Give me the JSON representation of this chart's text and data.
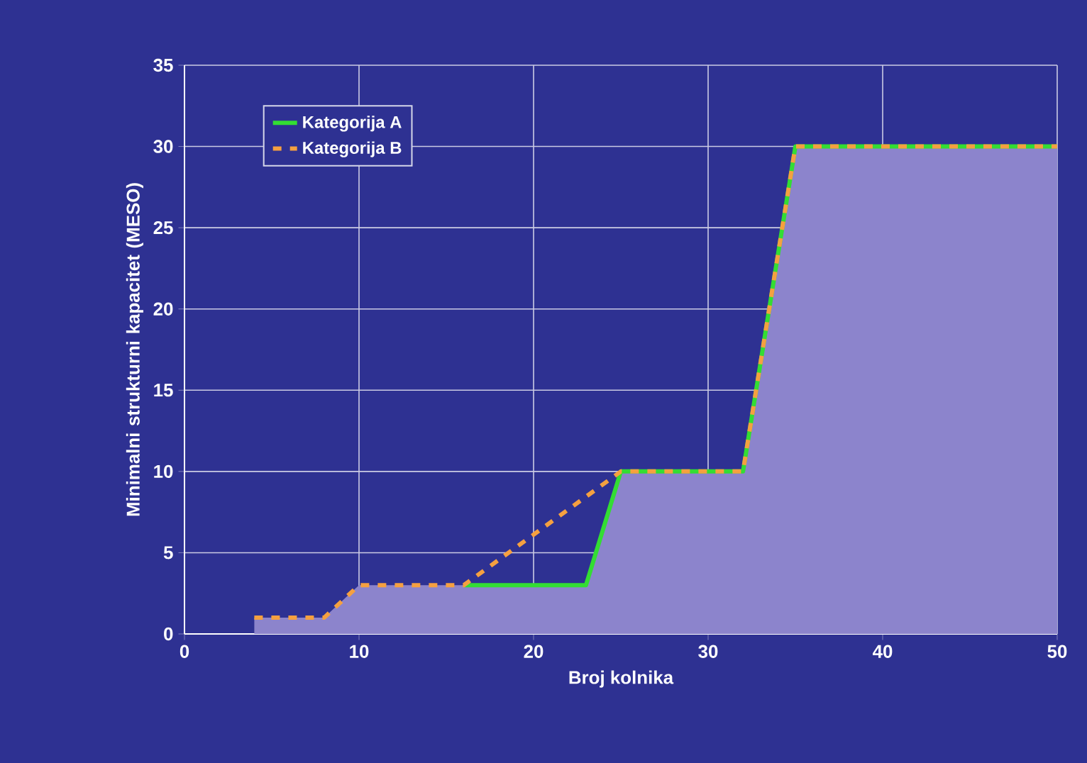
{
  "chart_data": {
    "type": "line",
    "xlabel": "Broj kolnika",
    "ylabel": "Minimalni strukturni kapacitet (MESO)",
    "xlim": [
      0,
      50
    ],
    "xticks": [
      0,
      10,
      20,
      30,
      40,
      50
    ],
    "ylim": [
      0,
      35
    ],
    "yticks": [
      0,
      5,
      10,
      15,
      20,
      25,
      30,
      35
    ],
    "grid": true,
    "legend": "top left",
    "series": [
      {
        "type": "area",
        "color": "#8c84cc",
        "x": [
          4,
          8,
          10,
          23,
          25,
          32,
          35,
          50
        ],
        "values": [
          1,
          1,
          3,
          3,
          10,
          10,
          30,
          30
        ]
      },
      {
        "name": "Kategorija A",
        "color": "#33dd33",
        "line_style": "solid",
        "x": [
          16,
          23,
          25,
          32,
          35,
          50
        ],
        "values": [
          3,
          3,
          10,
          10,
          30,
          30
        ]
      },
      {
        "name": "Kategorija B",
        "color": "#f5a040",
        "line_style": "dashed",
        "x": [
          4,
          8,
          10,
          16,
          25,
          32,
          35,
          50
        ],
        "values": [
          1,
          1,
          3,
          3,
          10,
          10,
          30,
          30
        ]
      }
    ]
  }
}
